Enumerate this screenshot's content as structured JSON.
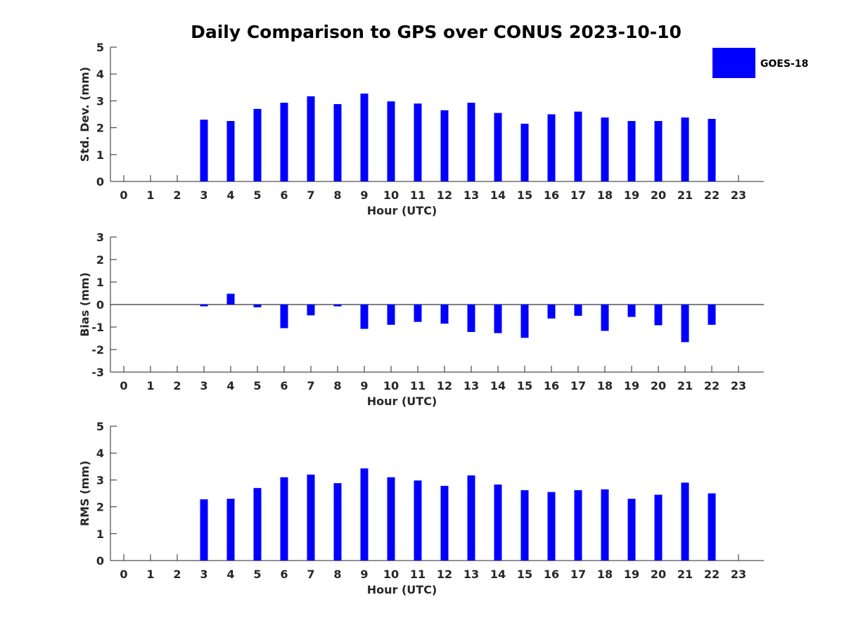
{
  "title": "Daily Comparison to GPS over CONUS 2023-10-10",
  "legend": {
    "label": "GOES-18",
    "placement": "top-right",
    "color": "#0000ff"
  },
  "chart_data": [
    {
      "type": "bar",
      "xlabel": "Hour (UTC)",
      "ylabel": "Std. Dev. (mm)",
      "ylim": [
        0,
        5
      ],
      "yticks": [
        0,
        1,
        2,
        3,
        4,
        5
      ],
      "x": [
        0,
        1,
        2,
        3,
        4,
        5,
        6,
        7,
        8,
        9,
        10,
        11,
        12,
        13,
        14,
        15,
        16,
        17,
        18,
        19,
        20,
        21,
        22,
        23
      ],
      "series": [
        {
          "name": "GOES-18",
          "color": "#0000ff",
          "values": [
            null,
            null,
            null,
            2.3,
            2.25,
            2.7,
            2.93,
            3.17,
            2.88,
            3.27,
            2.98,
            2.9,
            2.65,
            2.93,
            2.55,
            2.15,
            2.5,
            2.6,
            2.38,
            2.25,
            2.25,
            2.38,
            2.33,
            null
          ]
        }
      ]
    },
    {
      "type": "bar",
      "xlabel": "Hour (UTC)",
      "ylabel": "Bias (mm)",
      "ylim": [
        -3,
        3
      ],
      "yticks": [
        -3,
        -2,
        -1,
        0,
        1,
        2,
        3
      ],
      "zero_line": true,
      "x": [
        0,
        1,
        2,
        3,
        4,
        5,
        6,
        7,
        8,
        9,
        10,
        11,
        12,
        13,
        14,
        15,
        16,
        17,
        18,
        19,
        20,
        21,
        22,
        23
      ],
      "series": [
        {
          "name": "GOES-18",
          "color": "#0000ff",
          "values": [
            null,
            null,
            null,
            -0.08,
            0.48,
            -0.12,
            -1.05,
            -0.48,
            -0.08,
            -1.08,
            -0.9,
            -0.77,
            -0.85,
            -1.22,
            -1.27,
            -1.48,
            -0.62,
            -0.5,
            -1.17,
            -0.55,
            -0.92,
            -1.67,
            -0.9,
            null
          ]
        }
      ]
    },
    {
      "type": "bar",
      "xlabel": "Hour (UTC)",
      "ylabel": "RMS (mm)",
      "ylim": [
        0,
        5
      ],
      "yticks": [
        0,
        1,
        2,
        3,
        4,
        5
      ],
      "x": [
        0,
        1,
        2,
        3,
        4,
        5,
        6,
        7,
        8,
        9,
        10,
        11,
        12,
        13,
        14,
        15,
        16,
        17,
        18,
        19,
        20,
        21,
        22,
        23
      ],
      "series": [
        {
          "name": "GOES-18",
          "color": "#0000ff",
          "values": [
            null,
            null,
            null,
            2.28,
            2.3,
            2.7,
            3.1,
            3.2,
            2.88,
            3.43,
            3.1,
            2.98,
            2.78,
            3.17,
            2.83,
            2.62,
            2.55,
            2.62,
            2.65,
            2.3,
            2.45,
            2.9,
            2.5,
            null
          ]
        }
      ]
    }
  ]
}
